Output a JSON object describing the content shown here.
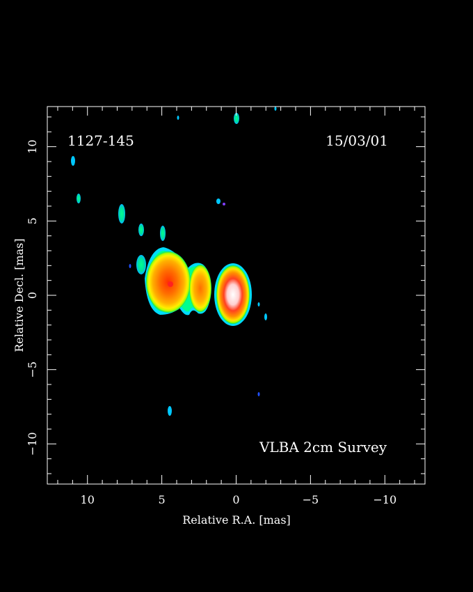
{
  "figure": {
    "source_name": "1127-145",
    "date": "15/03/01",
    "survey": "VLBA 2cm Survey"
  },
  "axes": {
    "xlabel": "Relative R.A. [mas]",
    "ylabel": "Relative Decl. [mas]",
    "x_range": [
      12.7,
      -12.7
    ],
    "y_range": [
      -12.7,
      12.7
    ],
    "x_ticks": [
      {
        "value": 10,
        "label": "10"
      },
      {
        "value": 5,
        "label": "5"
      },
      {
        "value": 0,
        "label": "0"
      },
      {
        "value": -5,
        "label": "−5"
      },
      {
        "value": -10,
        "label": "−10"
      }
    ],
    "y_ticks": [
      {
        "value": 10,
        "label": "10"
      },
      {
        "value": 5,
        "label": "5"
      },
      {
        "value": 0,
        "label": "0"
      },
      {
        "value": -5,
        "label": "−5"
      },
      {
        "value": -10,
        "label": "−10"
      }
    ],
    "minor_step": 1
  },
  "colors": {
    "background": "#000000",
    "frame": "#ffffff",
    "cyan": "#00d8ff",
    "green": "#00ff80",
    "lime": "#c0ff00",
    "yellow": "#ffe000",
    "orange": "#ff8000",
    "red": "#ff3000",
    "white": "#ffffff"
  }
}
